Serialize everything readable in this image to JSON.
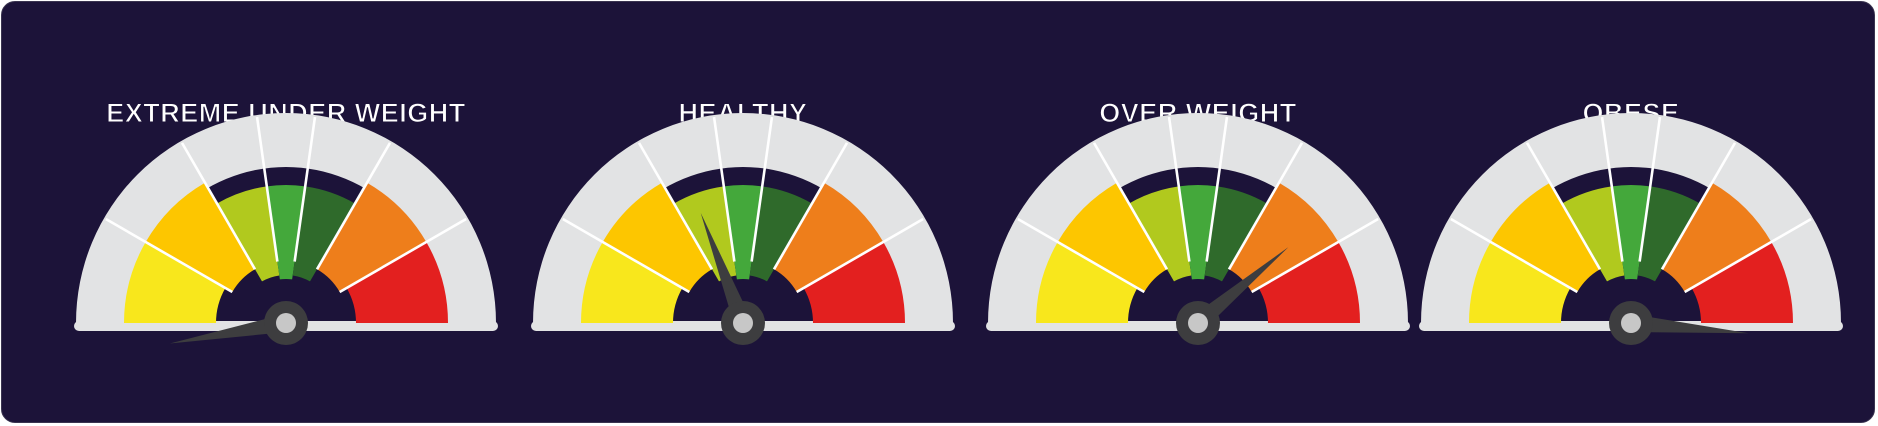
{
  "gauges": [
    {
      "title": "EXTREME UNDER WEIGHT",
      "needle_angle_deg": 190
    },
    {
      "title": "HEALTHY",
      "needle_angle_deg": 111
    },
    {
      "title": "OVER WEIGHT",
      "needle_angle_deg": 40
    },
    {
      "title": "OBESE",
      "needle_angle_deg": -5
    }
  ],
  "colors": {
    "background": "#1c1339",
    "outer_ring": "#e2e3e4",
    "zones": [
      "#f8e71c",
      "#fdc600",
      "#b1c91e",
      "#44a83b",
      "#2f6a2b",
      "#ee7e1b",
      "#e3201f"
    ],
    "needle": "#3d3d3f",
    "hub_center": "#c7c7c7"
  }
}
